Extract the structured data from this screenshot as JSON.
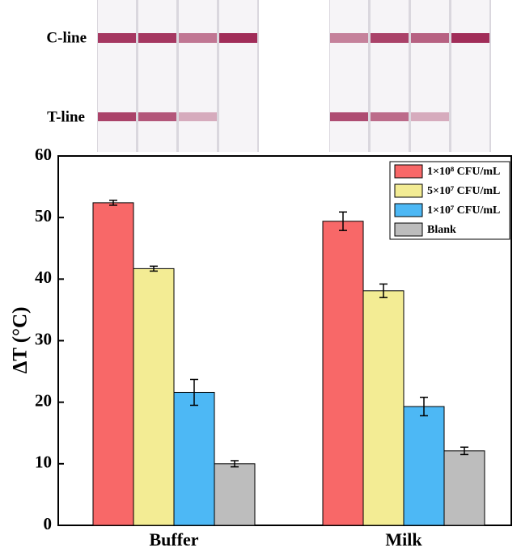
{
  "strip_image": {
    "labels": [
      "C-line",
      "T-line"
    ]
  },
  "chart_data": {
    "type": "bar",
    "ylabel": "ΔT (°C)",
    "categories": [
      "Buffer",
      "Milk"
    ],
    "series": [
      {
        "name": "1×10⁸ CFU/mL",
        "color": "#f86868",
        "values": [
          52.4,
          49.4
        ],
        "errors": [
          0.4,
          1.5
        ]
      },
      {
        "name": "5×10⁷ CFU/mL",
        "color": "#f3ec94",
        "values": [
          41.7,
          38.1
        ],
        "errors": [
          0.4,
          1.1
        ]
      },
      {
        "name": "1×10⁷ CFU/mL",
        "color": "#4db8f5",
        "values": [
          21.6,
          19.3
        ],
        "errors": [
          2.1,
          1.5
        ]
      },
      {
        "name": "Blank",
        "color": "#bdbdbd",
        "values": [
          10.0,
          12.1
        ],
        "errors": [
          0.5,
          0.6
        ]
      }
    ],
    "ylim": [
      0,
      60
    ],
    "yticks": [
      0,
      10,
      20,
      30,
      40,
      50,
      60
    ],
    "legend": "upper right"
  }
}
